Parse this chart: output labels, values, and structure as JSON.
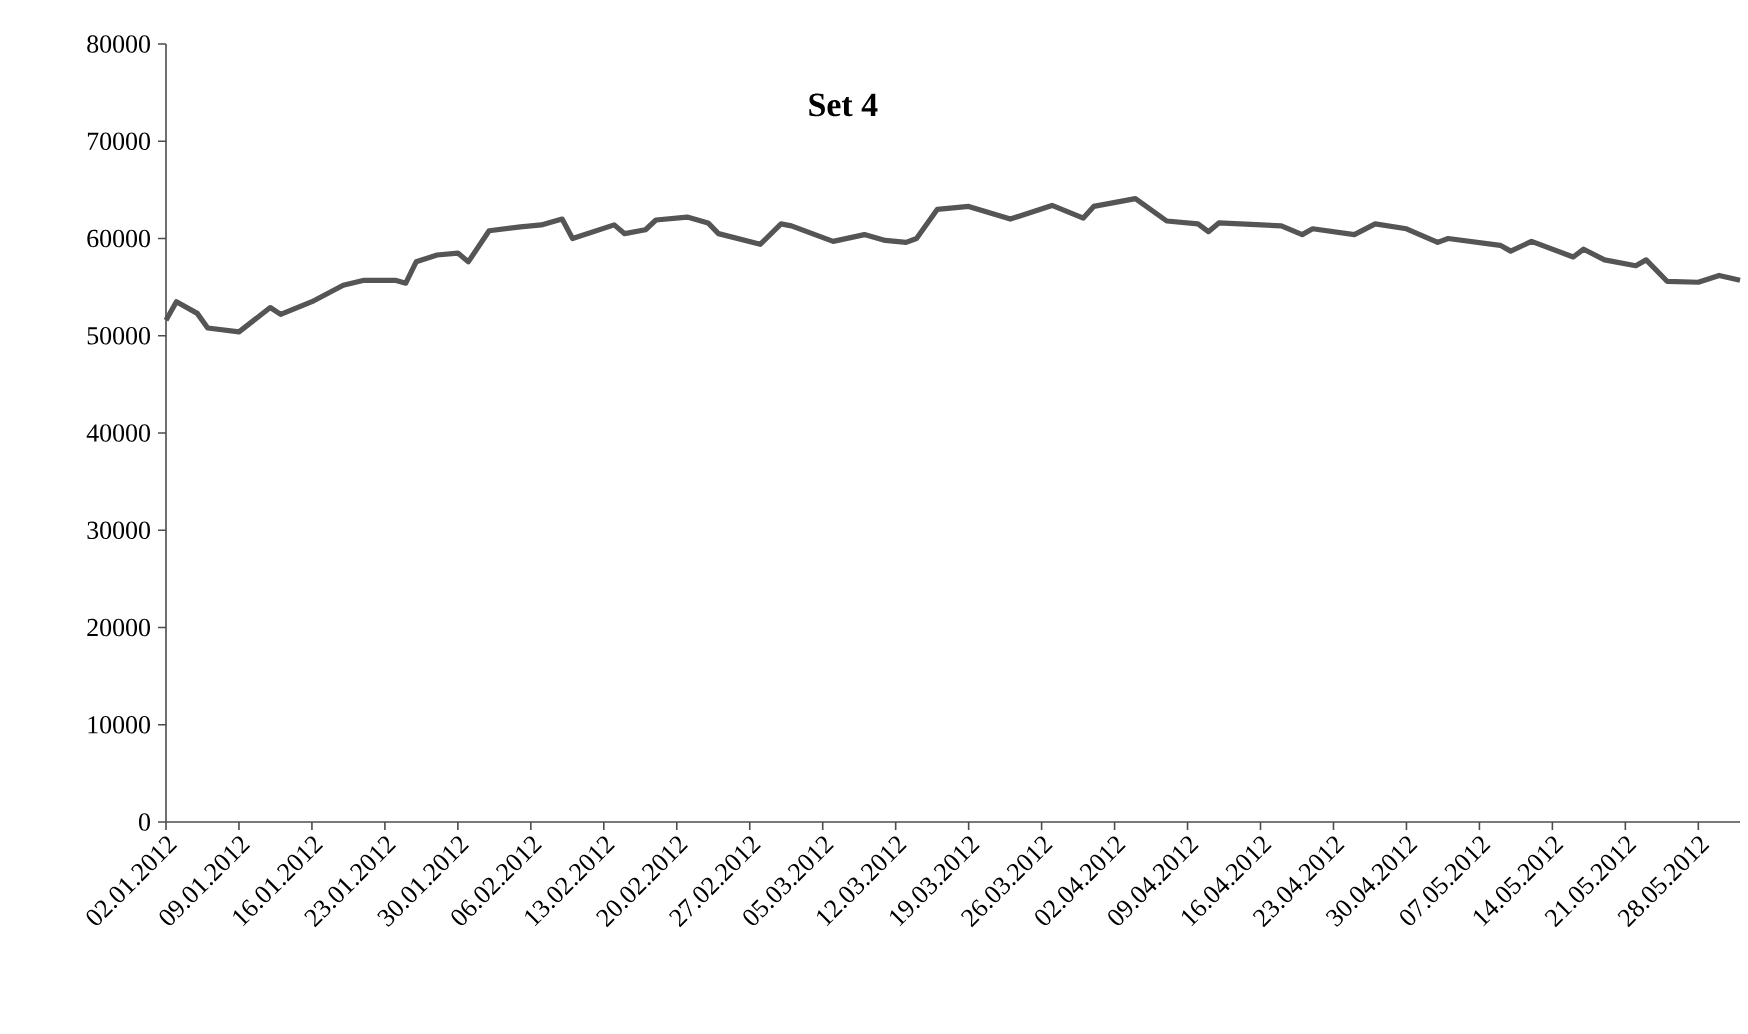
{
  "chart_data": {
    "type": "line",
    "title": "Set 4",
    "x": [
      "2012-01-02",
      "2012-01-03",
      "2012-01-05",
      "2012-01-06",
      "2012-01-09",
      "2012-01-12",
      "2012-01-13",
      "2012-01-16",
      "2012-01-19",
      "2012-01-21",
      "2012-01-24",
      "2012-01-25",
      "2012-01-26",
      "2012-01-28",
      "2012-01-30",
      "2012-01-31",
      "2012-02-02",
      "2012-02-05",
      "2012-02-07",
      "2012-02-09",
      "2012-02-10",
      "2012-02-14",
      "2012-02-15",
      "2012-02-17",
      "2012-02-18",
      "2012-02-21",
      "2012-02-23",
      "2012-02-24",
      "2012-02-28",
      "2012-03-01",
      "2012-03-02",
      "2012-03-06",
      "2012-03-09",
      "2012-03-11",
      "2012-03-13",
      "2012-03-14",
      "2012-03-16",
      "2012-03-19",
      "2012-03-23",
      "2012-03-27",
      "2012-03-30",
      "2012-03-31",
      "2012-04-04",
      "2012-04-07",
      "2012-04-10",
      "2012-04-11",
      "2012-04-12",
      "2012-04-18",
      "2012-04-20",
      "2012-04-21",
      "2012-04-25",
      "2012-04-27",
      "2012-04-30",
      "2012-05-03",
      "2012-05-04",
      "2012-05-09",
      "2012-05-10",
      "2012-05-12",
      "2012-05-16",
      "2012-05-17",
      "2012-05-19",
      "2012-05-22",
      "2012-05-23",
      "2012-05-25",
      "2012-05-28",
      "2012-05-30",
      "2012-06-01"
    ],
    "series": [
      {
        "color": "#555555",
        "values": [
          51600,
          53500,
          52300,
          50800,
          50400,
          52900,
          52200,
          53500,
          55200,
          55700,
          55700,
          55400,
          57600,
          58300,
          58500,
          57600,
          60800,
          61200,
          61400,
          62000,
          60000,
          61400,
          60500,
          60900,
          61900,
          62200,
          61600,
          60500,
          59400,
          61500,
          61300,
          59700,
          60400,
          59800,
          59600,
          60000,
          63000,
          63300,
          62000,
          63400,
          62100,
          63300,
          64100,
          61800,
          61500,
          60700,
          61600,
          61300,
          60400,
          61000,
          60400,
          61500,
          61000,
          59600,
          60000,
          59300,
          58700,
          59700,
          58100,
          58900,
          57800,
          57200,
          57800,
          55600,
          55500,
          56200,
          55700
        ]
      }
    ],
    "xlim": [
      "2012-01-02",
      "2012-06-01"
    ],
    "xticks": [
      {
        "value": "2012-01-02",
        "label": "02.01.2012"
      },
      {
        "value": "2012-01-09",
        "label": "09.01.2012"
      },
      {
        "value": "2012-01-16",
        "label": "16.01.2012"
      },
      {
        "value": "2012-01-23",
        "label": "23.01.2012"
      },
      {
        "value": "2012-01-30",
        "label": "30.01.2012"
      },
      {
        "value": "2012-02-06",
        "label": "06.02.2012"
      },
      {
        "value": "2012-02-13",
        "label": "13.02.2012"
      },
      {
        "value": "2012-02-20",
        "label": "20.02.2012"
      },
      {
        "value": "2012-02-27",
        "label": "27.02.2012"
      },
      {
        "value": "2012-03-05",
        "label": "05.03.2012"
      },
      {
        "value": "2012-03-12",
        "label": "12.03.2012"
      },
      {
        "value": "2012-03-19",
        "label": "19.03.2012"
      },
      {
        "value": "2012-03-26",
        "label": "26.03.2012"
      },
      {
        "value": "2012-04-02",
        "label": "02.04.2012"
      },
      {
        "value": "2012-04-09",
        "label": "09.04.2012"
      },
      {
        "value": "2012-04-16",
        "label": "16.04.2012"
      },
      {
        "value": "2012-04-23",
        "label": "23.04.2012"
      },
      {
        "value": "2012-04-30",
        "label": "30.04.2012"
      },
      {
        "value": "2012-05-07",
        "label": "07.05.2012"
      },
      {
        "value": "2012-05-14",
        "label": "14.05.2012"
      },
      {
        "value": "2012-05-21",
        "label": "21.05.2012"
      },
      {
        "value": "2012-05-28",
        "label": "28.05.2012"
      }
    ],
    "ylim": [
      0,
      80000
    ],
    "yticks": [
      0,
      10000,
      20000,
      30000,
      40000,
      50000,
      60000,
      70000,
      80000
    ],
    "grid": false,
    "marker": "none",
    "line_style": "solid"
  }
}
